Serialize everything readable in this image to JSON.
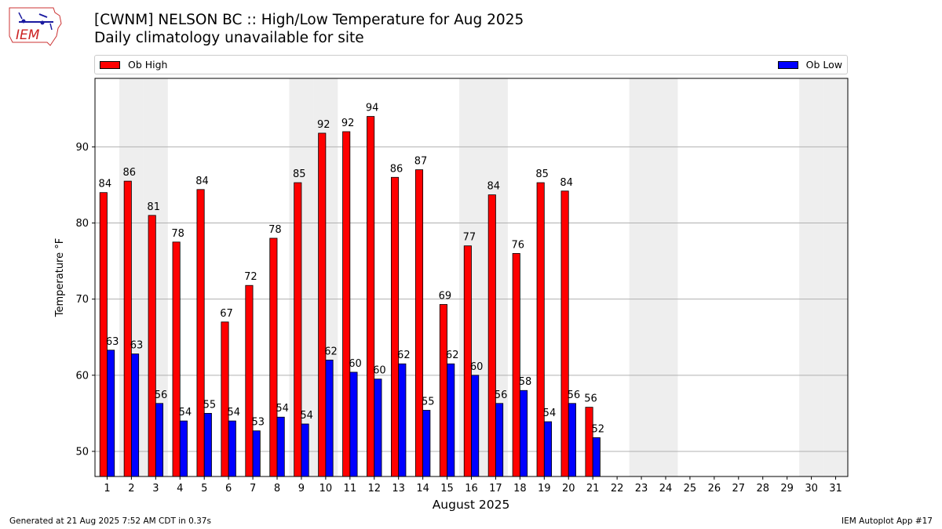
{
  "header": {
    "title": "[CWNM] NELSON  BC :: High/Low Temperature for Aug 2025",
    "subtitle": "Daily climatology unavailable for site",
    "logo_text": "IEM"
  },
  "footer": {
    "generated": "Generated at 21 Aug 2025 7:52 AM CDT in 0.37s",
    "app": "IEM Autoplot App #17"
  },
  "colors": {
    "high": "#ff0000",
    "low": "#0000ff",
    "weekend_band": "#eeeeee",
    "grid": "#b0b0b0"
  },
  "chart_data": {
    "type": "bar",
    "xlabel": "August 2025",
    "ylabel": "Temperature °F",
    "ylim": [
      46.7,
      99
    ],
    "yticks": [
      50,
      60,
      70,
      80,
      90
    ],
    "grid": "horizontal",
    "legend_placement": "top",
    "categories": [
      "1",
      "2",
      "3",
      "4",
      "5",
      "6",
      "7",
      "8",
      "9",
      "10",
      "11",
      "12",
      "13",
      "14",
      "15",
      "16",
      "17",
      "18",
      "19",
      "20",
      "21",
      "22",
      "23",
      "24",
      "25",
      "26",
      "27",
      "28",
      "29",
      "30",
      "31"
    ],
    "shaded_days": [
      2,
      3,
      9,
      10,
      16,
      17,
      23,
      24,
      30,
      31
    ],
    "series": [
      {
        "name": "Ob High",
        "color": "#ff0000",
        "values": [
          84.0,
          85.5,
          81.0,
          77.5,
          84.4,
          67.0,
          71.8,
          78.0,
          85.3,
          91.8,
          92.0,
          94.0,
          86.0,
          87.0,
          69.3,
          77.0,
          83.7,
          76.0,
          85.3,
          84.2,
          55.8,
          null,
          null,
          null,
          null,
          null,
          null,
          null,
          null,
          null,
          null
        ],
        "labels": [
          "84",
          "86",
          "81",
          "78",
          "84",
          "67",
          "72",
          "78",
          "85",
          "92",
          "92",
          "94",
          "86",
          "87",
          "69",
          "77",
          "84",
          "76",
          "85",
          "84",
          "56",
          "",
          "",
          "",
          "",
          "",
          "",
          "",
          "",
          "",
          ""
        ]
      },
      {
        "name": "Ob Low",
        "color": "#0000ff",
        "values": [
          63.3,
          62.8,
          56.3,
          54.0,
          55.0,
          54.0,
          52.7,
          54.5,
          53.6,
          62.0,
          60.4,
          59.5,
          61.5,
          55.4,
          61.5,
          60.0,
          56.3,
          58.0,
          53.9,
          56.3,
          51.8,
          null,
          null,
          null,
          null,
          null,
          null,
          null,
          null,
          null,
          null
        ],
        "labels": [
          "63",
          "63",
          "56",
          "54",
          "55",
          "54",
          "53",
          "54",
          "54",
          "62",
          "60",
          "60",
          "62",
          "55",
          "62",
          "60",
          "56",
          "58",
          "54",
          "56",
          "52",
          "",
          "",
          "",
          "",
          "",
          "",
          "",
          "",
          "",
          ""
        ]
      }
    ]
  }
}
